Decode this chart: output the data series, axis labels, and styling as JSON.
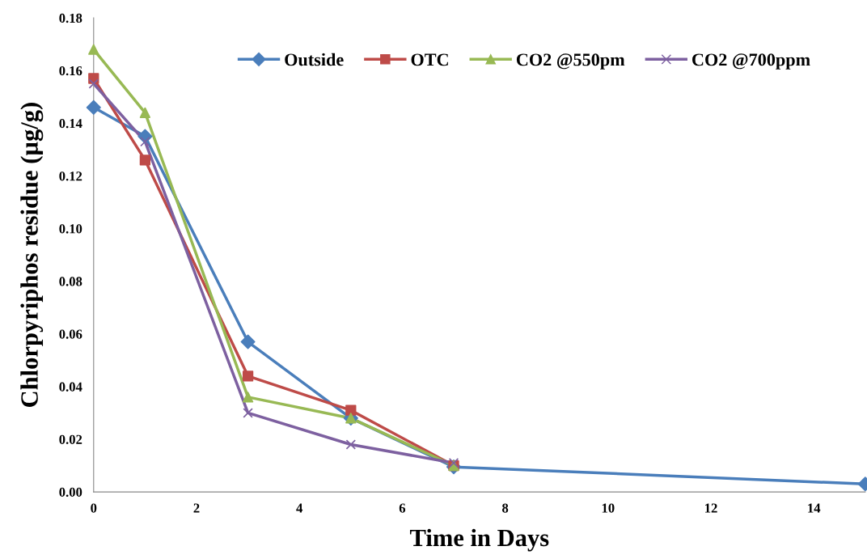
{
  "chart_data": {
    "type": "line",
    "xlabel": "Time in Days",
    "ylabel": "Chlorpyriphos residue (µg/g)",
    "xlim": [
      0,
      15
    ],
    "xticks": [
      0,
      2,
      4,
      6,
      8,
      10,
      12,
      14
    ],
    "ylim": [
      0,
      0.18
    ],
    "yticks": [
      {
        "value": 0,
        "label": "0.00"
      },
      {
        "value": 0.02,
        "label": "0.02"
      },
      {
        "value": 0.04,
        "label": "0.04"
      },
      {
        "value": 0.06,
        "label": "0.06"
      },
      {
        "value": 0.08,
        "label": "0.08"
      },
      {
        "value": 0.1,
        "label": "0.10"
      },
      {
        "value": 0.12,
        "label": "0.12"
      },
      {
        "value": 0.14,
        "label": "0.14"
      },
      {
        "value": 0.16,
        "label": "0.16"
      },
      {
        "value": 0.18,
        "label": "0.18"
      }
    ],
    "grid": false,
    "legend": "top right",
    "series": [
      {
        "name": "Outside",
        "color": "#4a7ebb",
        "marker": "diamond",
        "x": [
          0,
          1,
          3,
          5,
          7,
          15
        ],
        "values": [
          0.146,
          0.135,
          0.057,
          0.028,
          0.0095,
          0.003
        ]
      },
      {
        "name": "OTC",
        "color": "#be4b48",
        "marker": "square",
        "x": [
          0,
          1,
          3,
          5,
          7
        ],
        "values": [
          0.157,
          0.126,
          0.044,
          0.031,
          0.01
        ]
      },
      {
        "name": "CO2 @550pm",
        "color": "#98b954",
        "marker": "triangle",
        "x": [
          0,
          1,
          3,
          5,
          7
        ],
        "values": [
          0.168,
          0.144,
          0.036,
          0.028,
          0.01
        ]
      },
      {
        "name": "CO2 @700ppm",
        "color": "#7d60a0",
        "marker": "cross",
        "x": [
          0,
          1,
          3,
          5,
          7
        ],
        "values": [
          0.155,
          0.133,
          0.03,
          0.018,
          0.011
        ]
      }
    ]
  }
}
